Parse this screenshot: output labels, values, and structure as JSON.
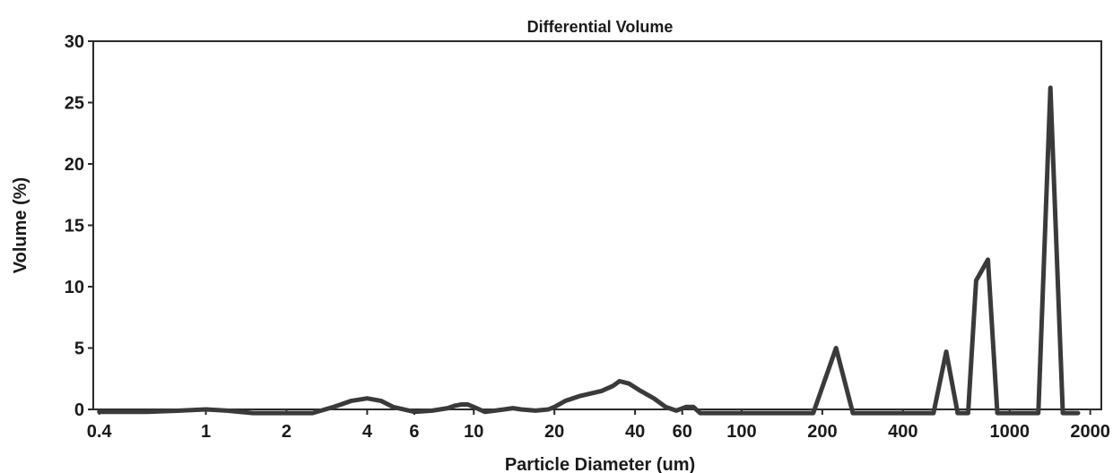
{
  "chart_data": {
    "type": "line",
    "title": "Differential Volume",
    "xlabel": "Particle Diameter (um)",
    "ylabel": "Volume (%)",
    "x_scale": "log",
    "xlim": [
      0.38,
      2200
    ],
    "ylim": [
      0,
      30
    ],
    "grid": false,
    "legend": "none",
    "x_ticks": [
      0.4,
      1,
      2,
      4,
      6,
      10,
      20,
      40,
      60,
      100,
      200,
      400,
      1000,
      2000
    ],
    "x_tick_labels": [
      "0.4",
      "1",
      "2",
      "4",
      "6",
      "10",
      "20",
      "40",
      "60",
      "100",
      "200",
      "400",
      "1000",
      "2000"
    ],
    "y_ticks": [
      0,
      5,
      10,
      15,
      20,
      25,
      30
    ],
    "y_tick_labels": [
      "0",
      "5",
      "10",
      "15",
      "20",
      "25",
      "30"
    ],
    "line_color": "#3a3a3a",
    "series": [
      {
        "x": [
          0.4,
          0.6,
          0.8,
          1.0,
          1.2,
          1.5,
          2.0,
          2.5,
          3.0,
          3.5,
          4.0,
          4.5,
          5.0,
          6.0,
          7.0,
          8.0,
          8.5,
          9.0,
          9.5,
          10.0,
          11.0,
          12.0,
          13.0,
          14.0,
          15.0,
          17.0,
          19.0,
          20.0,
          22.0,
          25.0,
          30.0,
          33.0,
          35.0,
          38.0,
          42.0,
          47.0,
          52.0,
          57.0,
          62.0,
          66.0,
          70.0,
          100.0,
          150.0,
          185.0,
          225.0,
          260.0,
          320.0,
          520.0,
          580.0,
          640.0,
          700.0,
          750.0,
          830.0,
          900.0,
          1000.0,
          1280.0,
          1420.0,
          1580.0,
          1800.0
        ],
        "y": [
          -0.2,
          -0.2,
          -0.1,
          0.0,
          -0.1,
          -0.3,
          -0.3,
          -0.3,
          0.2,
          0.7,
          0.9,
          0.7,
          0.2,
          -0.2,
          -0.1,
          0.1,
          0.3,
          0.4,
          0.4,
          0.2,
          -0.2,
          -0.1,
          0.0,
          0.1,
          0.0,
          -0.1,
          0.0,
          0.2,
          0.7,
          1.1,
          1.5,
          1.9,
          2.3,
          2.1,
          1.5,
          0.9,
          0.2,
          -0.1,
          0.2,
          0.2,
          -0.3,
          -0.3,
          -0.3,
          -0.3,
          5.0,
          -0.3,
          -0.3,
          -0.3,
          4.7,
          -0.3,
          -0.3,
          10.5,
          12.2,
          -0.3,
          -0.3,
          -0.3,
          26.2,
          -0.3,
          -0.3
        ]
      }
    ]
  }
}
